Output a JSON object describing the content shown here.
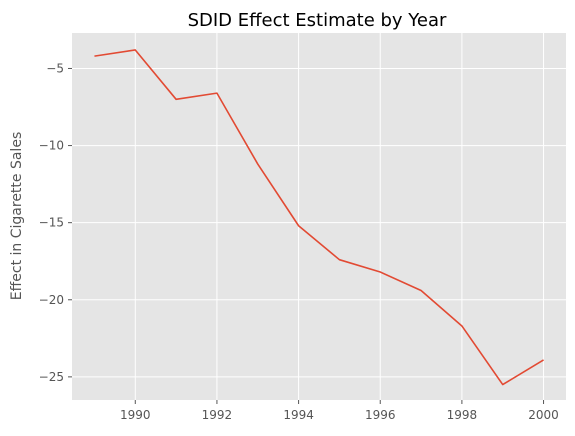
{
  "chart_data": {
    "type": "line",
    "title": "SDID Effect Estimate by Year",
    "xlabel": "",
    "ylabel": "Effect in Cigarette Sales",
    "x": [
      1989,
      1990,
      1991,
      1992,
      1993,
      1994,
      1995,
      1996,
      1997,
      1998,
      1999,
      2000
    ],
    "series": [
      {
        "values": [
          -4.2,
          -3.8,
          -7.0,
          -6.6,
          -11.2,
          -15.2,
          -17.4,
          -18.2,
          -19.4,
          -21.7,
          -25.5,
          -23.9
        ]
      }
    ],
    "xlim": [
      1988.45,
      2000.55
    ],
    "ylim": [
      -26.5,
      -2.7
    ],
    "xticks": [
      1990,
      1992,
      1994,
      1996,
      1998,
      2000
    ],
    "xtick_labels": [
      "1990",
      "1992",
      "1994",
      "1996",
      "1998",
      "2000"
    ],
    "yticks": [
      -25,
      -20,
      -15,
      -10,
      -5
    ],
    "ytick_labels": [
      "−25",
      "−20",
      "−15",
      "−10",
      "−5"
    ],
    "grid": true,
    "legend": "none",
    "colors": {
      "line": "#E24A33",
      "panel": "#E5E5E5",
      "grid": "#FFFFFF",
      "text": "#555555"
    }
  }
}
